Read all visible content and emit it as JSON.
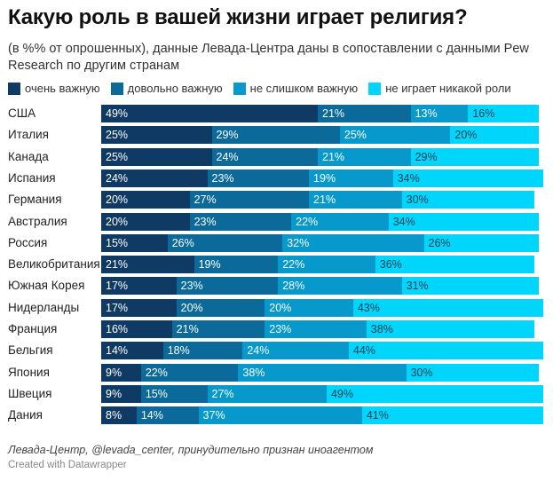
{
  "chart_data": {
    "type": "bar",
    "orientation": "horizontal",
    "stacked": true,
    "title": "Какую роль в вашей жизни играет религия?",
    "subtitle": "(в %% от опрошенных), данные Левада-Центра даны в сопоставлении с данными Pew Research по другим странам",
    "xlabel": "",
    "ylabel": "",
    "xlim": [
      0,
      100
    ],
    "grid": false,
    "legend_position": "top-left",
    "value_suffix": "%",
    "categories": [
      "США",
      "Италия",
      "Канада",
      "Испания",
      "Германия",
      "Австралия",
      "Россия",
      "Великобритания",
      "Южная Корея",
      "Нидерланды",
      "Франция",
      "Бельгия",
      "Япония",
      "Швеция",
      "Дания"
    ],
    "series": [
      {
        "name": "очень важную",
        "color": "#0f3a63",
        "label_color": "#ffffff",
        "values": [
          49,
          25,
          25,
          24,
          20,
          20,
          15,
          21,
          17,
          17,
          16,
          14,
          9,
          9,
          8
        ]
      },
      {
        "name": "довольно важную",
        "color": "#0b6a9a",
        "label_color": "#ffffff",
        "values": [
          21,
          29,
          24,
          23,
          27,
          23,
          26,
          19,
          23,
          20,
          21,
          18,
          22,
          15,
          14
        ]
      },
      {
        "name": "не слишком важную",
        "color": "#0799cc",
        "label_color": "#ffffff",
        "values": [
          13,
          25,
          21,
          19,
          21,
          22,
          32,
          22,
          28,
          20,
          23,
          24,
          38,
          27,
          37
        ]
      },
      {
        "name": "не играет никакой роли",
        "color": "#00d6fb",
        "label_color": "#1b3a4f",
        "values": [
          16,
          20,
          29,
          34,
          30,
          34,
          26,
          36,
          31,
          43,
          38,
          44,
          30,
          49,
          41
        ]
      }
    ]
  },
  "source": "Левада-Центр, @levada_center, принудительно признан иноагентом",
  "credit": "Created with Datawrapper"
}
